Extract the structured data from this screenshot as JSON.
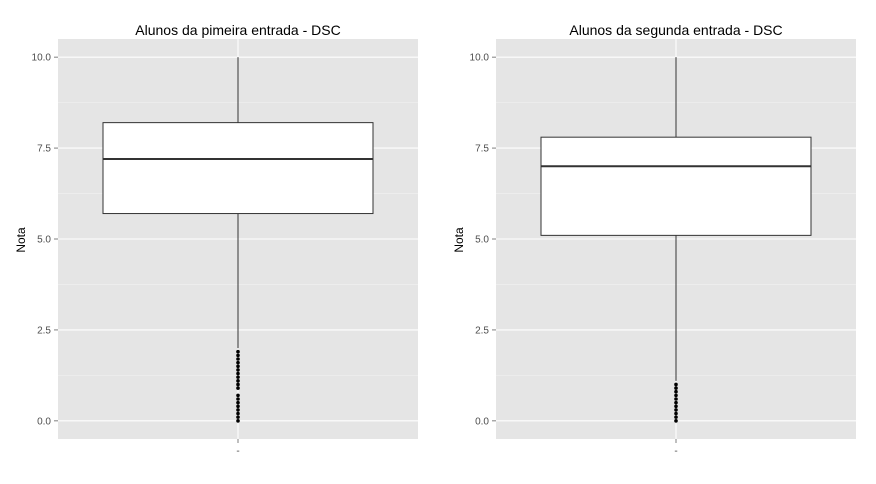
{
  "chart_data": [
    {
      "type": "box",
      "title": "Alunos da pimeira entrada - DSC",
      "xlabel": "",
      "ylabel": "Nota",
      "x_tick_label": "-",
      "ylim": [
        -0.5,
        10.5
      ],
      "y_ticks": [
        0.0,
        2.5,
        5.0,
        7.5,
        10.0
      ],
      "y_tick_labels": [
        "0.0",
        "2.5",
        "5.0",
        "7.5",
        "10.0"
      ],
      "grid": true,
      "box": {
        "whisker_low": 2.0,
        "q1": 5.7,
        "median": 7.2,
        "q3": 8.2,
        "whisker_high": 10.0
      },
      "outliers": [
        0.0,
        0.1,
        0.2,
        0.3,
        0.4,
        0.5,
        0.6,
        0.7,
        0.9,
        1.0,
        1.1,
        1.2,
        1.3,
        1.4,
        1.5,
        1.6,
        1.7,
        1.8,
        1.9
      ]
    },
    {
      "type": "box",
      "title": "Alunos da segunda entrada - DSC",
      "xlabel": "",
      "ylabel": "Nota",
      "x_tick_label": "-",
      "ylim": [
        -0.5,
        10.5
      ],
      "y_ticks": [
        0.0,
        2.5,
        5.0,
        7.5,
        10.0
      ],
      "y_tick_labels": [
        "0.0",
        "2.5",
        "5.0",
        "7.5",
        "10.0"
      ],
      "grid": true,
      "box": {
        "whisker_low": 1.1,
        "q1": 5.1,
        "median": 7.0,
        "q3": 7.8,
        "whisker_high": 10.0
      },
      "outliers": [
        0.0,
        0.1,
        0.2,
        0.3,
        0.4,
        0.5,
        0.6,
        0.7,
        0.8,
        0.9,
        1.0
      ]
    }
  ],
  "colors": {
    "panel_background": "#e5e5e5",
    "grid_major": "#ffffff",
    "grid_minor": "#f2f2f2",
    "box_fill": "#ffffff",
    "box_stroke": "#333333",
    "outlier": "#000000",
    "tick_text": "#4d4d4d",
    "tick_mark": "#7f7f7f"
  }
}
